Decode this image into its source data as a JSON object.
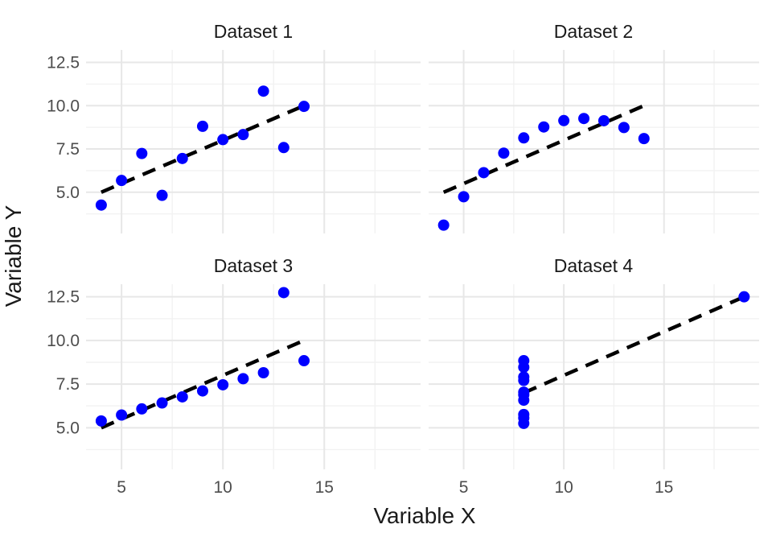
{
  "style": {
    "background": "#ffffff",
    "point_color": "#0000ff",
    "trend_color": "#000000",
    "grid_major_color": "#e7e7e7",
    "grid_minor_color": "#f2f2f2",
    "tick_label_color": "#4d4d4d",
    "title_color": "#1a1a1a"
  },
  "chart_data": {
    "type": "scatter",
    "title": "",
    "xlabel": "Variable X",
    "ylabel": "Variable Y",
    "xlim": [
      3.25,
      19.75
    ],
    "ylim": [
      2.618,
      13.222
    ],
    "grid": true,
    "legend": "none",
    "x_ticks": [
      {
        "v": 5,
        "label": "5"
      },
      {
        "v": 10,
        "label": "10"
      },
      {
        "v": 15,
        "label": "15"
      }
    ],
    "y_ticks": [
      {
        "v": 5,
        "label": "5.0"
      },
      {
        "v": 7.5,
        "label": "7.5"
      },
      {
        "v": 10,
        "label": "10.0"
      },
      {
        "v": 12.5,
        "label": "12.5"
      }
    ],
    "x_minor": [
      7.5,
      12.5,
      17.5
    ],
    "y_minor": [
      3.75,
      6.25,
      8.75,
      11.25
    ],
    "facets": [
      {
        "label": "Dataset 1",
        "x": [
          10,
          8,
          13,
          9,
          11,
          14,
          6,
          4,
          12,
          7,
          5
        ],
        "y": [
          8.04,
          6.95,
          7.58,
          8.81,
          8.33,
          9.96,
          7.24,
          4.26,
          10.84,
          4.82,
          5.68
        ],
        "trend": {
          "type": "lm",
          "line_style": "dashed",
          "x1": 4,
          "y1": 5.0,
          "x2": 14,
          "y2": 10.0
        }
      },
      {
        "label": "Dataset 2",
        "x": [
          10,
          8,
          13,
          9,
          11,
          14,
          6,
          4,
          12,
          7,
          5
        ],
        "y": [
          9.14,
          8.14,
          8.74,
          8.77,
          9.26,
          8.1,
          6.13,
          3.1,
          9.13,
          7.26,
          4.74
        ],
        "trend": {
          "type": "lm",
          "line_style": "dashed",
          "x1": 4,
          "y1": 5.0,
          "x2": 14,
          "y2": 10.0
        }
      },
      {
        "label": "Dataset 3",
        "x": [
          10,
          8,
          13,
          9,
          11,
          14,
          6,
          4,
          12,
          7,
          5
        ],
        "y": [
          7.46,
          6.77,
          12.74,
          7.11,
          7.81,
          8.84,
          6.08,
          5.39,
          8.15,
          6.42,
          5.73
        ],
        "trend": {
          "type": "lm",
          "line_style": "dashed",
          "x1": 4,
          "y1": 5.0,
          "x2": 14,
          "y2": 10.0
        }
      },
      {
        "label": "Dataset 4",
        "x": [
          8,
          8,
          8,
          8,
          8,
          8,
          8,
          19,
          8,
          8,
          8
        ],
        "y": [
          6.58,
          5.76,
          7.71,
          8.84,
          8.47,
          7.04,
          5.25,
          12.5,
          5.56,
          7.91,
          6.89
        ],
        "trend": {
          "type": "lm",
          "line_style": "dashed",
          "x1": 8,
          "y1": 7.0,
          "x2": 19,
          "y2": 12.5
        }
      }
    ]
  }
}
